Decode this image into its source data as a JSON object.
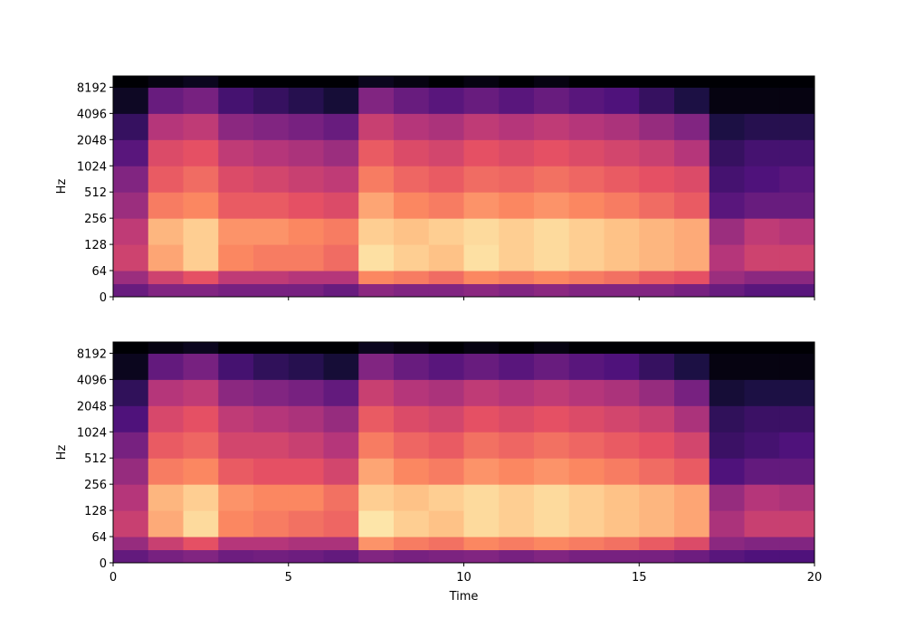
{
  "chart_data": [
    {
      "type": "heatmap",
      "ylabel": "Hz",
      "colormap": "magma",
      "zlim": [
        -80,
        0
      ],
      "yscale": "symlog",
      "linthresh": 64,
      "xlim": [
        0,
        20
      ],
      "xticks": [
        0,
        5,
        10,
        15,
        20
      ],
      "show_xtick_labels": false,
      "ylim": [
        0,
        11025
      ],
      "yticks": [
        0,
        64,
        128,
        256,
        512,
        1024,
        2048,
        4096,
        8192
      ],
      "x_edges": [
        0,
        1,
        2,
        3,
        4,
        5,
        6,
        7,
        8,
        9,
        10,
        11,
        12,
        13,
        14,
        15,
        16,
        17,
        18,
        19,
        20
      ],
      "y_edges": [
        0,
        32,
        64,
        128,
        256,
        512,
        1024,
        2048,
        4096,
        8192,
        11025
      ],
      "z": [
        [
          -55,
          -50,
          -50,
          -52,
          -52,
          -52,
          -55,
          -48,
          -50,
          -50,
          -48,
          -50,
          -48,
          -50,
          -50,
          -50,
          -52,
          -55,
          -58,
          -58
        ],
        [
          -45,
          -35,
          -30,
          -38,
          -38,
          -40,
          -40,
          -20,
          -22,
          -25,
          -20,
          -22,
          -20,
          -22,
          -24,
          -28,
          -30,
          -45,
          -48,
          -48
        ],
        [
          -35,
          -15,
          -8,
          -20,
          -22,
          -22,
          -25,
          -5,
          -8,
          -10,
          -5,
          -8,
          -6,
          -8,
          -10,
          -12,
          -14,
          -40,
          -35,
          -35
        ],
        [
          -38,
          -12,
          -8,
          -18,
          -18,
          -20,
          -22,
          -8,
          -10,
          -8,
          -6,
          -8,
          -6,
          -8,
          -10,
          -12,
          -14,
          -45,
          -38,
          -40
        ],
        [
          -45,
          -22,
          -20,
          -28,
          -28,
          -30,
          -32,
          -15,
          -20,
          -22,
          -18,
          -20,
          -18,
          -20,
          -22,
          -25,
          -28,
          -58,
          -55,
          -55
        ],
        [
          -50,
          -28,
          -25,
          -32,
          -34,
          -36,
          -38,
          -22,
          -26,
          -28,
          -25,
          -26,
          -24,
          -26,
          -28,
          -30,
          -32,
          -62,
          -60,
          -58
        ],
        [
          -58,
          -32,
          -30,
          -38,
          -40,
          -42,
          -45,
          -28,
          -32,
          -34,
          -30,
          -32,
          -30,
          -32,
          -34,
          -36,
          -40,
          -65,
          -62,
          -62
        ],
        [
          -65,
          -40,
          -38,
          -48,
          -50,
          -52,
          -55,
          -36,
          -40,
          -42,
          -38,
          -40,
          -38,
          -40,
          -42,
          -46,
          -50,
          -70,
          -68,
          -68
        ],
        [
          -75,
          -55,
          -52,
          -62,
          -65,
          -68,
          -72,
          -50,
          -55,
          -58,
          -55,
          -58,
          -55,
          -58,
          -60,
          -65,
          -70,
          -78,
          -78,
          -78
        ],
        [
          -80,
          -78,
          -76,
          -80,
          -80,
          -80,
          -80,
          -76,
          -78,
          -80,
          -78,
          -80,
          -78,
          -80,
          -80,
          -80,
          -80,
          -80,
          -80,
          -80
        ]
      ]
    },
    {
      "type": "heatmap",
      "ylabel": "Hz",
      "xlabel": "Time",
      "colormap": "magma",
      "zlim": [
        -80,
        0
      ],
      "yscale": "symlog",
      "linthresh": 64,
      "xlim": [
        0,
        20
      ],
      "xticks": [
        0,
        5,
        10,
        15,
        20
      ],
      "show_xtick_labels": true,
      "ylim": [
        0,
        11025
      ],
      "yticks": [
        0,
        64,
        128,
        256,
        512,
        1024,
        2048,
        4096,
        8192
      ],
      "x_edges": [
        0,
        1,
        2,
        3,
        4,
        5,
        6,
        7,
        8,
        9,
        10,
        11,
        12,
        13,
        14,
        15,
        16,
        17,
        18,
        19,
        20
      ],
      "y_edges": [
        0,
        32,
        64,
        128,
        256,
        512,
        1024,
        2048,
        4096,
        8192,
        11025
      ],
      "z": [
        [
          -56,
          -52,
          -50,
          -54,
          -53,
          -54,
          -56,
          -50,
          -52,
          -51,
          -50,
          -52,
          -50,
          -52,
          -52,
          -52,
          -54,
          -58,
          -60,
          -60
        ],
        [
          -46,
          -36,
          -30,
          -40,
          -40,
          -42,
          -42,
          -18,
          -22,
          -24,
          -20,
          -22,
          -20,
          -22,
          -24,
          -28,
          -32,
          -48,
          -50,
          -50
        ],
        [
          -36,
          -14,
          -6,
          -20,
          -22,
          -24,
          -26,
          -4,
          -8,
          -10,
          -6,
          -8,
          -6,
          -8,
          -10,
          -12,
          -15,
          -42,
          -36,
          -36
        ],
        [
          -40,
          -12,
          -8,
          -18,
          -20,
          -20,
          -24,
          -8,
          -10,
          -8,
          -6,
          -8,
          -6,
          -8,
          -10,
          -12,
          -15,
          -46,
          -40,
          -42
        ],
        [
          -46,
          -22,
          -20,
          -28,
          -30,
          -30,
          -34,
          -15,
          -20,
          -22,
          -18,
          -20,
          -18,
          -20,
          -22,
          -25,
          -28,
          -60,
          -56,
          -56
        ],
        [
          -52,
          -28,
          -26,
          -34,
          -34,
          -36,
          -40,
          -22,
          -26,
          -28,
          -24,
          -26,
          -24,
          -26,
          -28,
          -30,
          -34,
          -64,
          -62,
          -60
        ],
        [
          -60,
          -33,
          -30,
          -38,
          -40,
          -42,
          -46,
          -28,
          -32,
          -34,
          -30,
          -32,
          -30,
          -32,
          -34,
          -36,
          -42,
          -66,
          -64,
          -64
        ],
        [
          -66,
          -40,
          -38,
          -48,
          -50,
          -52,
          -56,
          -36,
          -40,
          -42,
          -38,
          -40,
          -38,
          -40,
          -42,
          -46,
          -52,
          -72,
          -70,
          -70
        ],
        [
          -76,
          -56,
          -52,
          -62,
          -66,
          -68,
          -72,
          -50,
          -55,
          -58,
          -55,
          -58,
          -55,
          -58,
          -60,
          -65,
          -70,
          -78,
          -78,
          -78
        ],
        [
          -80,
          -78,
          -76,
          -80,
          -80,
          -80,
          -80,
          -76,
          -78,
          -80,
          -78,
          -80,
          -78,
          -80,
          -80,
          -80,
          -80,
          -80,
          -80,
          -80
        ]
      ]
    }
  ]
}
